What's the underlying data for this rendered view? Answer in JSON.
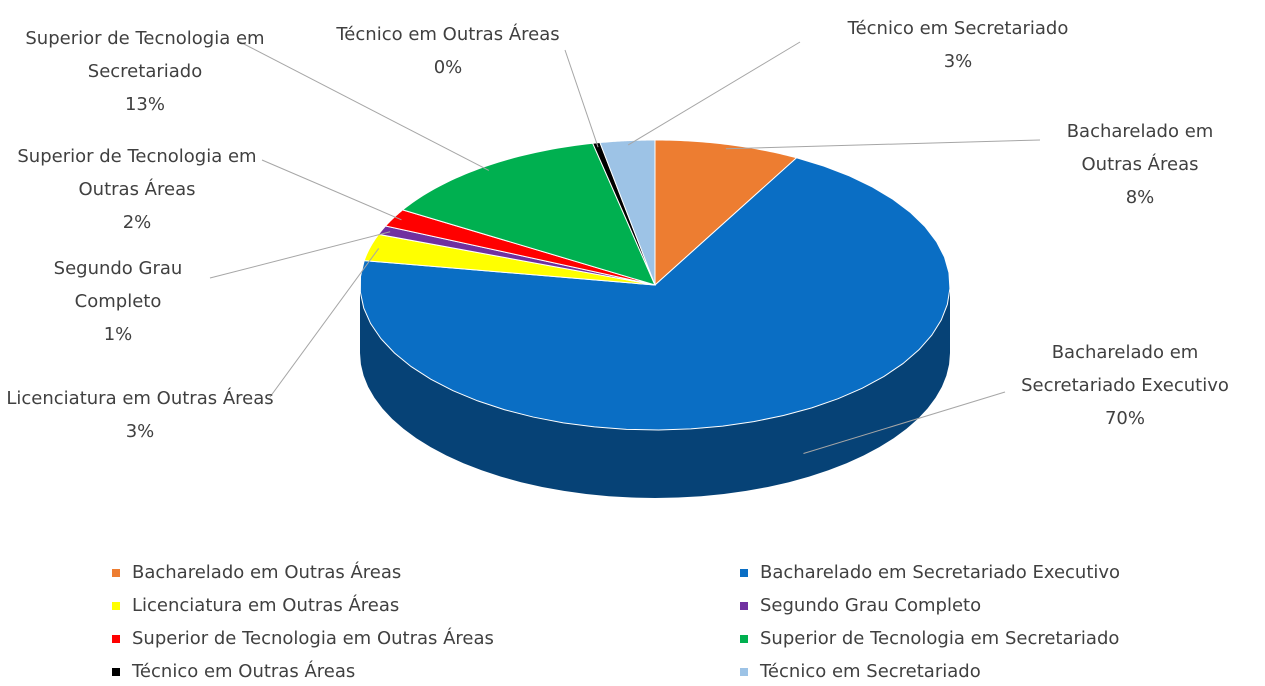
{
  "chart_data": {
    "type": "pie3d",
    "categories": [
      "Bacharelado em Outras Áreas",
      "Bacharelado em Secretariado Executivo",
      "Licenciatura em Outras Áreas",
      "Segundo Grau Completo",
      "Superior de Tecnologia em Outras Áreas",
      "Superior de Tecnologia em Secretariado",
      "Técnico em Outras Áreas",
      "Técnico em Secretariado"
    ],
    "values": [
      8,
      70,
      3,
      1,
      2,
      13,
      0.4,
      3
    ],
    "value_labels": [
      "8%",
      "70%",
      "3%",
      "1%",
      "2%",
      "13%",
      "0%",
      "3%"
    ],
    "colors": [
      "#ed7d31",
      "#0a6ec4",
      "#ffff00",
      "#7030a0",
      "#ff0000",
      "#00b050",
      "#000000",
      "#9dc3e6"
    ],
    "legend": "bottom"
  }
}
